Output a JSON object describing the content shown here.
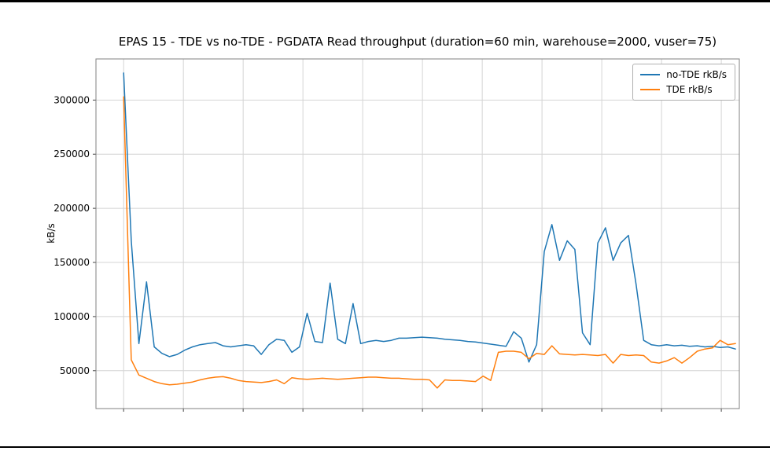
{
  "chart_data": {
    "type": "line",
    "title": "EPAS 15 - TDE vs no-TDE - PGDATA Read throughput (duration=60 min, warehouse=2000, vuser=75)",
    "xlabel": "",
    "ylabel": "kB/s",
    "xlim": [
      0,
      60
    ],
    "ylim": [
      15000,
      338000
    ],
    "yticks": [
      50000,
      100000,
      150000,
      200000,
      250000,
      300000
    ],
    "grid": true,
    "legend_position": "upper right",
    "x": [
      0,
      0.75,
      1.5,
      2.25,
      3,
      3.75,
      4.5,
      5.25,
      6,
      6.75,
      7.5,
      8.25,
      9,
      9.75,
      10.5,
      11.25,
      12,
      12.75,
      13.5,
      14.25,
      15,
      15.75,
      16.5,
      17.25,
      18,
      18.75,
      19.5,
      20.25,
      21,
      21.75,
      22.5,
      23.25,
      24,
      24.75,
      25.5,
      26.25,
      27,
      27.75,
      28.5,
      29.25,
      30,
      30.75,
      31.5,
      32.25,
      33,
      33.75,
      34.5,
      35.25,
      36,
      36.75,
      37.5,
      38.25,
      39,
      39.75,
      40.5,
      41.25,
      42,
      42.75,
      43.5,
      44.25,
      45,
      45.75,
      46.5,
      47.25,
      48,
      48.75,
      49.5,
      50.25,
      51,
      51.75,
      52.5,
      53.25,
      54,
      54.75,
      55.5,
      56.25,
      57,
      57.75,
      58.5,
      59.25,
      60
    ],
    "series": [
      {
        "name": "no-TDE rkB/s",
        "color": "#1f77b4",
        "values": [
          325000,
          170000,
          75000,
          132000,
          72000,
          66000,
          63000,
          65000,
          69000,
          72000,
          74000,
          75000,
          76000,
          73000,
          72000,
          73000,
          74000,
          73000,
          65000,
          74000,
          79000,
          78000,
          67000,
          72000,
          103000,
          77000,
          76000,
          131000,
          79000,
          75000,
          112000,
          75000,
          77000,
          78000,
          77000,
          78000,
          80000,
          80000,
          80500,
          81000,
          80500,
          80000,
          79000,
          78500,
          78000,
          77000,
          76500,
          75500,
          74500,
          73500,
          72500,
          86000,
          80000,
          58000,
          74000,
          160000,
          185000,
          152000,
          170000,
          162000,
          85000,
          74000,
          168000,
          182000,
          152000,
          168000,
          175000,
          130000,
          78000,
          74000,
          73000,
          74000,
          73000,
          73500,
          72500,
          73000,
          72000,
          72500,
          71500,
          72000,
          70000
        ]
      },
      {
        "name": "TDE rkB/s",
        "color": "#ff7f0e",
        "values": [
          303000,
          60000,
          46000,
          43000,
          40000,
          38000,
          37000,
          37500,
          38500,
          39500,
          41500,
          43000,
          44000,
          44500,
          43000,
          41000,
          40000,
          39500,
          39000,
          40000,
          41500,
          38000,
          43500,
          42500,
          42000,
          42500,
          43000,
          42500,
          42000,
          42500,
          43000,
          43500,
          44000,
          44000,
          43500,
          43000,
          43000,
          42500,
          42000,
          42000,
          41500,
          34000,
          41500,
          41000,
          41000,
          40500,
          40000,
          45000,
          41000,
          67000,
          68000,
          68000,
          67000,
          61000,
          66000,
          65000,
          73000,
          65500,
          65000,
          64500,
          65000,
          64500,
          64000,
          65000,
          57000,
          65000,
          64000,
          64500,
          64000,
          58000,
          57000,
          59000,
          62000,
          57000,
          62000,
          68000,
          70000,
          71000,
          78000,
          74000,
          75000
        ]
      }
    ]
  }
}
